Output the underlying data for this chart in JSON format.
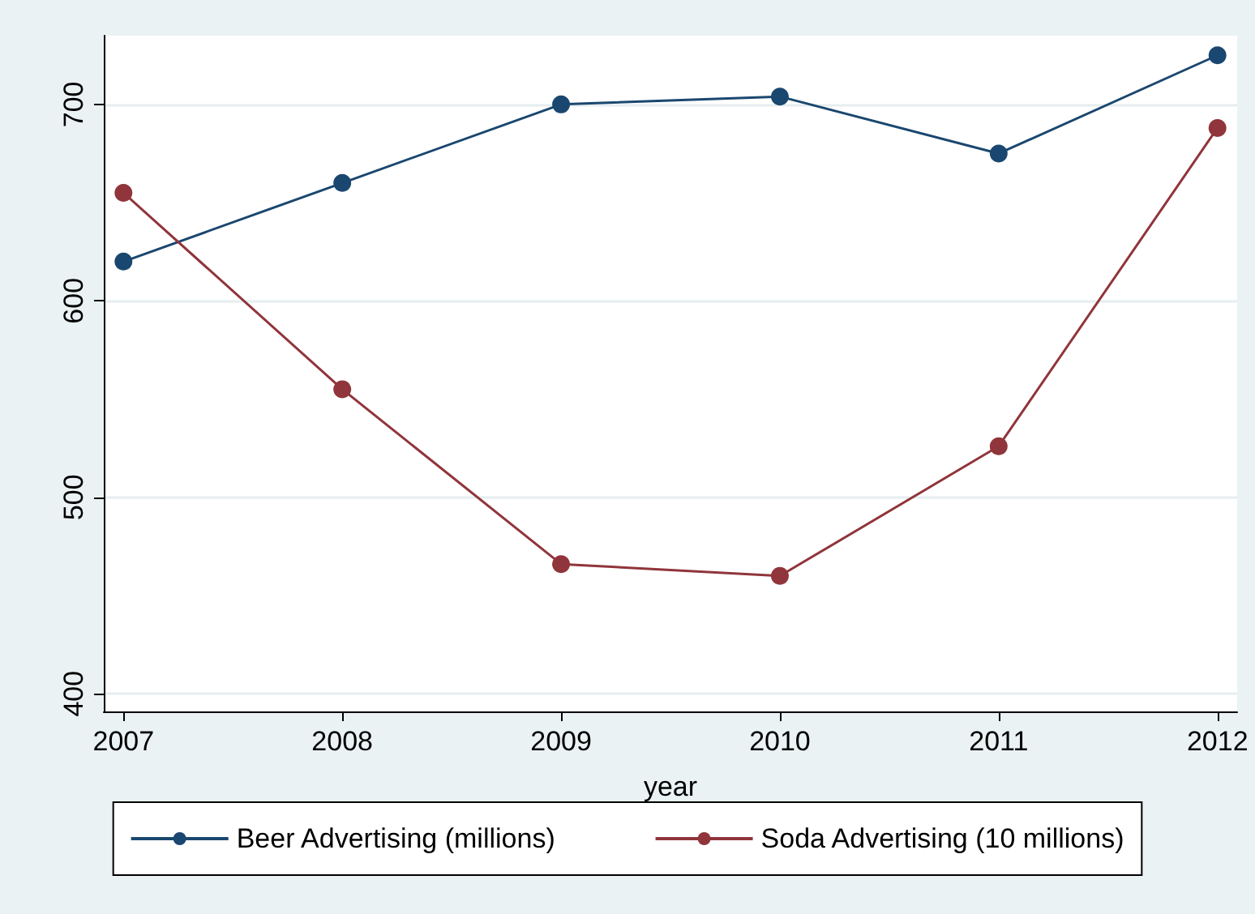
{
  "chart_data": {
    "type": "line",
    "xlabel": "year",
    "x": [
      2007,
      2008,
      2009,
      2010,
      2011,
      2012
    ],
    "xlim": [
      2006.91,
      2012.09
    ],
    "xticks": [
      2007,
      2008,
      2009,
      2010,
      2011,
      2012
    ],
    "ylim": [
      391,
      735
    ],
    "yticks": [
      400,
      500,
      600,
      700
    ],
    "series": [
      {
        "name": "Beer Advertising (millions)",
        "color": "#1a476f",
        "values": [
          620,
          660,
          700,
          704,
          675,
          725
        ]
      },
      {
        "name": "Soda Advertising (10 millions)",
        "color": "#90353b",
        "values": [
          655,
          555,
          466,
          460,
          526,
          688
        ]
      }
    ],
    "grid": "y",
    "legend": "bottom",
    "marker": "circle",
    "line_style": "solid"
  }
}
